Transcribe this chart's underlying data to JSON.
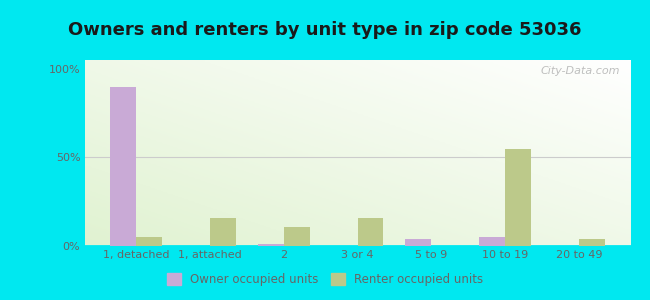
{
  "title": "Owners and renters by unit type in zip code 53036",
  "categories": [
    "1, detached",
    "1, attached",
    "2",
    "3 or 4",
    "5 to 9",
    "10 to 19",
    "20 to 49"
  ],
  "owner_values": [
    90,
    0,
    1,
    0,
    4,
    5,
    0
  ],
  "renter_values": [
    5,
    16,
    11,
    16,
    0,
    55,
    4
  ],
  "owner_color": "#c9aad6",
  "renter_color": "#bcc98a",
  "outer_background": "#00e8f0",
  "yticks": [
    0,
    50,
    100
  ],
  "ytick_labels": [
    "0%",
    "50%",
    "100%"
  ],
  "ylim": [
    0,
    105
  ],
  "bar_width": 0.35,
  "legend_owner": "Owner occupied units",
  "legend_renter": "Renter occupied units",
  "title_fontsize": 13,
  "tick_fontsize": 8,
  "legend_fontsize": 8.5,
  "watermark": "City-Data.com",
  "grid_color": "#cccccc",
  "tick_color": "#666666"
}
